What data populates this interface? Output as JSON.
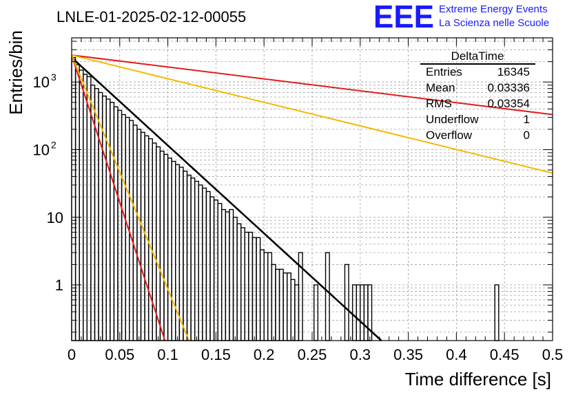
{
  "chart_data": {
    "type": "histogram",
    "title": "LNLE-01-2025-02-12-00055",
    "xlabel": "Time difference [s]",
    "ylabel": "Entries/bin",
    "xlim": [
      0,
      0.5
    ],
    "ylim": [
      0.15,
      4500
    ],
    "yscale": "log",
    "grid": true,
    "x_ticks": [
      "0",
      "0.05",
      "0.1",
      "0.15",
      "0.2",
      "0.25",
      "0.3",
      "0.35",
      "0.4",
      "0.45",
      "0.5"
    ],
    "y_ticks": [
      {
        "value": 1,
        "label": "1"
      },
      {
        "value": 10,
        "label": "10"
      },
      {
        "value": 100,
        "label": "10",
        "exp": "2"
      },
      {
        "value": 1000,
        "label": "10",
        "exp": "3"
      }
    ],
    "bin_width": 0.004,
    "bins": [
      {
        "x": 0.0,
        "y": 2300
      },
      {
        "x": 0.004,
        "y": 1800
      },
      {
        "x": 0.008,
        "y": 1500
      },
      {
        "x": 0.012,
        "y": 1300
      },
      {
        "x": 0.016,
        "y": 1200
      },
      {
        "x": 0.02,
        "y": 900
      },
      {
        "x": 0.024,
        "y": 800
      },
      {
        "x": 0.028,
        "y": 700
      },
      {
        "x": 0.032,
        "y": 620
      },
      {
        "x": 0.036,
        "y": 560
      },
      {
        "x": 0.04,
        "y": 500
      },
      {
        "x": 0.044,
        "y": 430
      },
      {
        "x": 0.048,
        "y": 380
      },
      {
        "x": 0.052,
        "y": 330
      },
      {
        "x": 0.056,
        "y": 300
      },
      {
        "x": 0.06,
        "y": 270
      },
      {
        "x": 0.064,
        "y": 230
      },
      {
        "x": 0.068,
        "y": 200
      },
      {
        "x": 0.072,
        "y": 180
      },
      {
        "x": 0.076,
        "y": 160
      },
      {
        "x": 0.08,
        "y": 145
      },
      {
        "x": 0.084,
        "y": 125
      },
      {
        "x": 0.088,
        "y": 110
      },
      {
        "x": 0.092,
        "y": 95
      },
      {
        "x": 0.096,
        "y": 85
      },
      {
        "x": 0.1,
        "y": 75
      },
      {
        "x": 0.104,
        "y": 67
      },
      {
        "x": 0.108,
        "y": 60
      },
      {
        "x": 0.112,
        "y": 55
      },
      {
        "x": 0.116,
        "y": 48
      },
      {
        "x": 0.12,
        "y": 42
      },
      {
        "x": 0.124,
        "y": 38
      },
      {
        "x": 0.128,
        "y": 34
      },
      {
        "x": 0.132,
        "y": 30
      },
      {
        "x": 0.136,
        "y": 27
      },
      {
        "x": 0.14,
        "y": 24
      },
      {
        "x": 0.144,
        "y": 20
      },
      {
        "x": 0.148,
        "y": 18
      },
      {
        "x": 0.152,
        "y": 16
      },
      {
        "x": 0.156,
        "y": 13
      },
      {
        "x": 0.16,
        "y": 12
      },
      {
        "x": 0.164,
        "y": 13
      },
      {
        "x": 0.168,
        "y": 10
      },
      {
        "x": 0.172,
        "y": 8
      },
      {
        "x": 0.176,
        "y": 7
      },
      {
        "x": 0.18,
        "y": 6
      },
      {
        "x": 0.184,
        "y": 6
      },
      {
        "x": 0.188,
        "y": 5
      },
      {
        "x": 0.192,
        "y": 5
      },
      {
        "x": 0.196,
        "y": 3.3
      },
      {
        "x": 0.2,
        "y": 3
      },
      {
        "x": 0.204,
        "y": 3
      },
      {
        "x": 0.208,
        "y": 2
      },
      {
        "x": 0.212,
        "y": 1.7
      },
      {
        "x": 0.216,
        "y": 1.7
      },
      {
        "x": 0.22,
        "y": 1.5
      },
      {
        "x": 0.224,
        "y": 1.5
      },
      {
        "x": 0.228,
        "y": 1.2
      },
      {
        "x": 0.232,
        "y": 1
      },
      {
        "x": 0.236,
        "y": 3
      },
      {
        "x": 0.24,
        "y": 0
      },
      {
        "x": 0.244,
        "y": 0
      },
      {
        "x": 0.248,
        "y": 0
      },
      {
        "x": 0.252,
        "y": 1
      },
      {
        "x": 0.256,
        "y": 0
      },
      {
        "x": 0.26,
        "y": 0
      },
      {
        "x": 0.264,
        "y": 3
      },
      {
        "x": 0.268,
        "y": 0
      },
      {
        "x": 0.272,
        "y": 0
      },
      {
        "x": 0.276,
        "y": 0
      },
      {
        "x": 0.28,
        "y": 0
      },
      {
        "x": 0.284,
        "y": 2
      },
      {
        "x": 0.288,
        "y": 0
      },
      {
        "x": 0.292,
        "y": 1
      },
      {
        "x": 0.296,
        "y": 1
      },
      {
        "x": 0.3,
        "y": 1
      },
      {
        "x": 0.304,
        "y": 1
      },
      {
        "x": 0.308,
        "y": 1
      },
      {
        "x": 0.44,
        "y": 1
      }
    ],
    "series": [
      {
        "color": "#000000",
        "points": [
          [
            0,
            2300
          ],
          [
            0.322,
            0.15
          ]
        ]
      },
      {
        "color": "#e41a1c",
        "points": [
          [
            0,
            2500
          ],
          [
            0.5,
            330
          ]
        ]
      },
      {
        "color": "#f5b800",
        "points": [
          [
            0,
            2500
          ],
          [
            0.5,
            45
          ]
        ]
      },
      {
        "color": "#e41a1c",
        "points": [
          [
            0,
            2500
          ],
          [
            0.097,
            0.15
          ]
        ]
      },
      {
        "color": "#f5b800",
        "points": [
          [
            0,
            2500
          ],
          [
            0.122,
            0.15
          ]
        ]
      }
    ],
    "stats_box": {
      "title": "DeltaTime",
      "rows": [
        {
          "label": "Entries",
          "value": "16345"
        },
        {
          "label": "Mean",
          "value": "0.03336"
        },
        {
          "label": "RMS",
          "value": "0.03354"
        },
        {
          "label": "Underflow",
          "value": "1"
        },
        {
          "label": "Overflow",
          "value": "0"
        }
      ]
    }
  },
  "logo": {
    "text": "EEE",
    "line1": "Extreme Energy Events",
    "line2": "La Scienza nelle Scuole",
    "color": "#1a1aff"
  }
}
